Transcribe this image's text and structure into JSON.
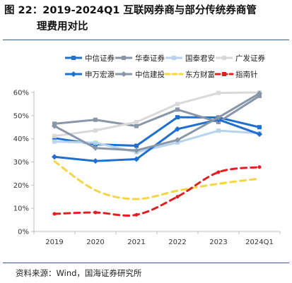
{
  "figure": {
    "title_line1": "图 22：2019-2024Q1 互联网券商与部分传统券商管",
    "title_line2": "理费用对比",
    "source": "资料来源：Wind，国海证券研究所"
  },
  "chart_data": {
    "type": "line",
    "categories": [
      "2019",
      "2020",
      "2021",
      "2022",
      "2023",
      "2024Q1"
    ],
    "ylim": [
      0,
      60
    ],
    "y_ticks": [
      "0%",
      "10%",
      "20%",
      "30%",
      "40%",
      "50%",
      "60%"
    ],
    "y_tick_values": [
      0,
      10,
      20,
      30,
      40,
      50,
      60
    ],
    "grid": false,
    "legend_position": "top",
    "series": [
      {
        "name": "中信证券",
        "color": "#1f6fd0",
        "dash": "solid",
        "marker": "square",
        "values": [
          40.3,
          37.6,
          37.0,
          49.3,
          49.2,
          45.0
        ]
      },
      {
        "name": "华泰证券",
        "color": "#8896a8",
        "dash": "solid",
        "marker": "square",
        "values": [
          46.5,
          48.2,
          45.5,
          52.6,
          47.2,
          58.5
        ]
      },
      {
        "name": "国泰君安",
        "color": "#b7d3ee",
        "dash": "solid",
        "marker": "square",
        "values": [
          38.8,
          38.3,
          34.2,
          38.4,
          43.5,
          42.4
        ]
      },
      {
        "name": "广发证券",
        "color": "#d9d9d9",
        "dash": "solid",
        "marker": "square",
        "values": [
          41.2,
          43.6,
          47.2,
          55.0,
          59.8,
          60.0
        ]
      },
      {
        "name": "申万宏源",
        "color": "#1f6fd0",
        "dash": "solid",
        "marker": "diamond",
        "values": [
          32.2,
          30.4,
          31.2,
          44.2,
          48.3,
          42.0
        ]
      },
      {
        "name": "中信建投",
        "color": "#8896a8",
        "dash": "solid",
        "marker": "diamond",
        "values": [
          45.5,
          36.0,
          35.0,
          39.5,
          49.2,
          59.6
        ]
      },
      {
        "name": "东方财富",
        "color": "#f5d547",
        "dash": "dashed",
        "marker": "none",
        "values": [
          30.3,
          17.8,
          14.0,
          17.6,
          20.6,
          22.8
        ]
      },
      {
        "name": "指南针",
        "color": "#e02020",
        "dash": "dashed",
        "marker": "square",
        "values": [
          7.6,
          8.2,
          7.2,
          15.0,
          25.6,
          27.8
        ]
      }
    ]
  }
}
